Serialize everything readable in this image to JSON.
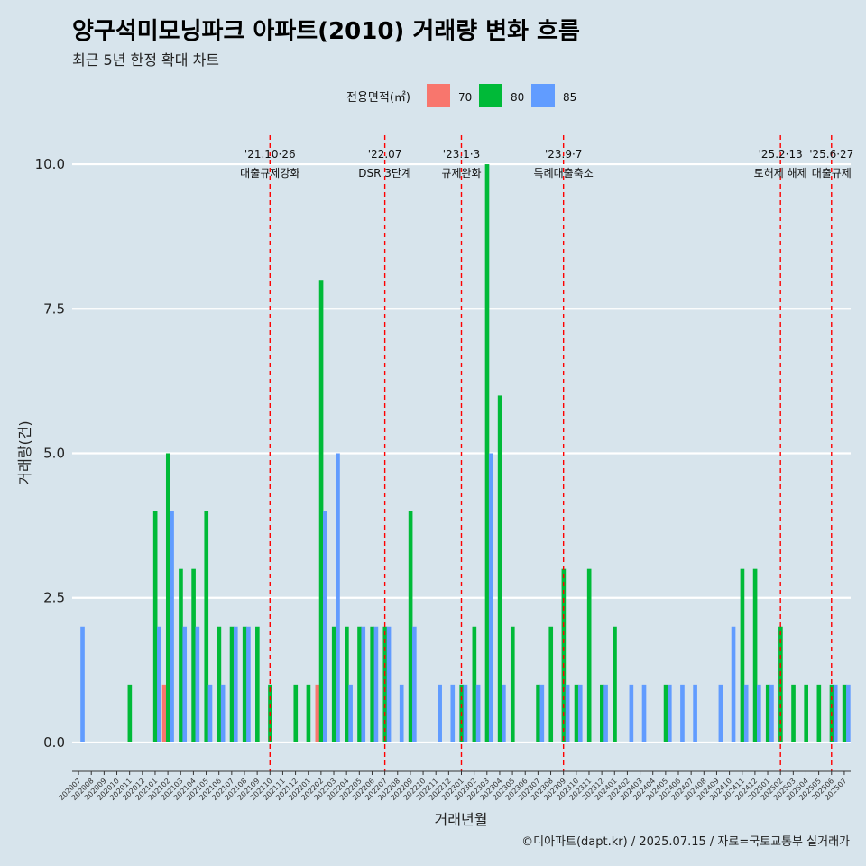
{
  "title": "양구석미모닝파크 아파트(2010) 거래량 변화 흐름",
  "subtitle": "최근 5년 한정 확대 차트",
  "caption": "©디아파트(dapt.kr) / 2025.07.15 / 자료=국토교통부 실거래가",
  "colors": {
    "area_70": "#f8766d",
    "area_80": "#00ba38",
    "area_85": "#619cff",
    "event_line": "#ff0000",
    "background": "#d7e4ec"
  },
  "chart_data": {
    "type": "bar",
    "title": "양구석미모닝파크 아파트(2010) 거래량 변화 흐름",
    "subtitle": "최근 5년 한정 확대 차트",
    "xlabel": "거래년월",
    "ylabel": "거래량(건)",
    "ylim": [
      -0.5,
      10.5
    ],
    "yticks": [
      "0.0",
      "2.5",
      "5.0",
      "7.5",
      "10.0"
    ],
    "grid": "horizontal",
    "legend": {
      "title": "전용면적(㎡)",
      "position": "top",
      "entries": [
        "70",
        "80",
        "85"
      ]
    },
    "categories": [
      "202007",
      "202008",
      "202009",
      "202010",
      "202011",
      "202012",
      "202101",
      "202102",
      "202103",
      "202104",
      "202105",
      "202106",
      "202107",
      "202108",
      "202109",
      "202110",
      "202111",
      "202112",
      "202201",
      "202202",
      "202203",
      "202204",
      "202205",
      "202206",
      "202207",
      "202208",
      "202209",
      "202210",
      "202211",
      "202212",
      "202301",
      "202302",
      "202303",
      "202304",
      "202305",
      "202306",
      "202307",
      "202308",
      "202309",
      "202310",
      "202311",
      "202312",
      "202401",
      "202402",
      "202403",
      "202404",
      "202405",
      "202406",
      "202407",
      "202408",
      "202409",
      "202410",
      "202411",
      "202412",
      "202501",
      "202502",
      "202503",
      "202504",
      "202505",
      "202506",
      "202507"
    ],
    "series": [
      {
        "name": "70",
        "values": [
          0,
          0,
          0,
          0,
          0,
          0,
          0,
          1,
          0,
          0,
          0,
          0,
          0,
          0,
          0,
          0,
          0,
          0,
          0,
          1,
          0,
          0,
          0,
          0,
          0,
          0,
          0,
          0,
          0,
          0,
          0,
          0,
          0,
          0,
          0,
          0,
          0,
          0,
          0,
          0,
          0,
          0,
          0,
          0,
          0,
          0,
          0,
          0,
          0,
          0,
          0,
          0,
          0,
          0,
          0,
          0,
          0,
          0,
          0,
          0,
          0
        ]
      },
      {
        "name": "80",
        "values": [
          0,
          0,
          0,
          0,
          1,
          0,
          4,
          5,
          3,
          3,
          4,
          2,
          2,
          2,
          2,
          1,
          0,
          1,
          1,
          8,
          2,
          2,
          2,
          2,
          2,
          0,
          4,
          0,
          0,
          0,
          1,
          2,
          10,
          6,
          2,
          0,
          1,
          2,
          3,
          1,
          3,
          1,
          2,
          0,
          0,
          0,
          1,
          0,
          0,
          0,
          0,
          0,
          3,
          3,
          1,
          2,
          1,
          1,
          1,
          1,
          1
        ]
      },
      {
        "name": "85",
        "values": [
          2,
          0,
          0,
          0,
          0,
          0,
          2,
          4,
          2,
          2,
          1,
          1,
          2,
          2,
          0,
          0,
          0,
          0,
          0,
          4,
          5,
          1,
          2,
          2,
          2,
          1,
          2,
          0,
          1,
          1,
          1,
          1,
          5,
          1,
          0,
          0,
          1,
          0,
          1,
          1,
          0,
          1,
          0,
          1,
          1,
          0,
          1,
          1,
          1,
          0,
          1,
          2,
          1,
          1,
          1,
          0,
          0,
          0,
          0,
          1,
          1
        ]
      }
    ],
    "events": [
      {
        "category": "202110",
        "date": "'21.10·26",
        "label": "대출규제강화"
      },
      {
        "category": "202207",
        "date": "'22.07",
        "label": "DSR 3단계"
      },
      {
        "category": "202301",
        "date": "'23.1·3",
        "label": "규제완화"
      },
      {
        "category": "202309",
        "date": "'23.9·7",
        "label": "특례대출축소"
      },
      {
        "category": "202502",
        "date": "'25.2·13",
        "label": "토허제 해제"
      },
      {
        "category": "202506",
        "date": "'25.6·27",
        "label": "대출규제"
      }
    ]
  }
}
